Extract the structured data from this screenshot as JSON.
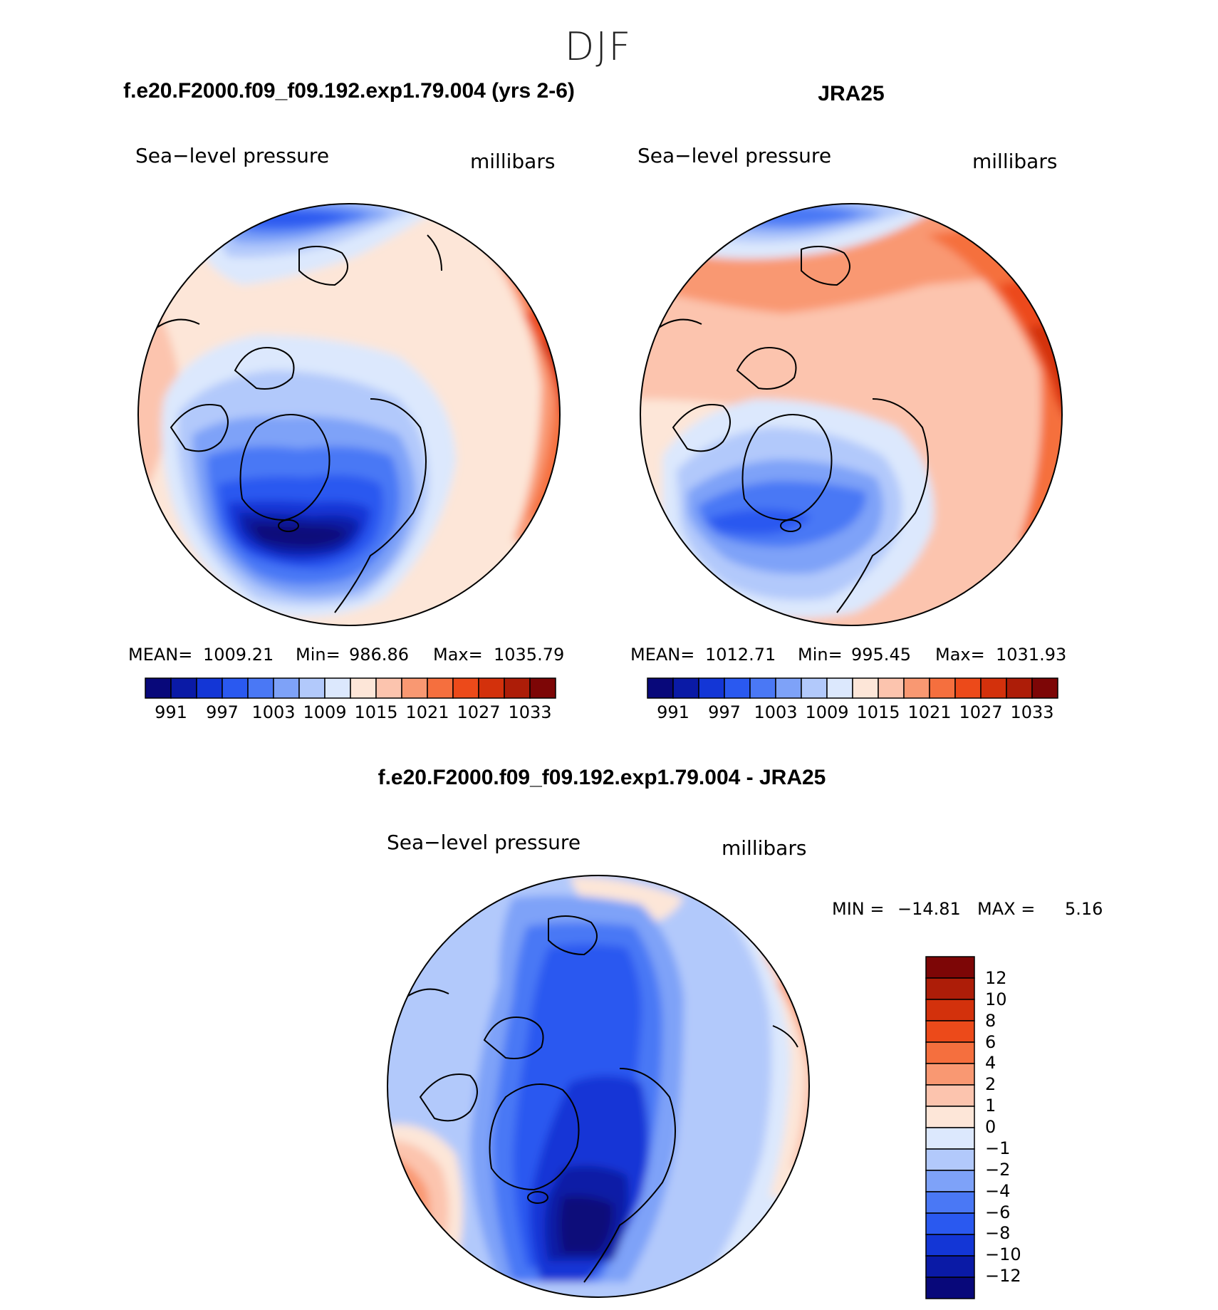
{
  "season_title": "DJF",
  "panels": [
    {
      "id": "model",
      "case_title": "f.e20.F2000.f09_f09.192.exp1.79.004 (yrs 2-6)",
      "variable": "Sea−level pressure",
      "units": "millibars",
      "stats": {
        "mean_label": "MEAN=",
        "mean": "1009.21",
        "min_label": "Min=",
        "min": "986.86",
        "max_label": "Max=",
        "max": "1035.79"
      },
      "colorbar_labels": [
        "991",
        "997",
        "1003",
        "1009",
        "1015",
        "1021",
        "1027",
        "1033"
      ]
    },
    {
      "id": "obs",
      "case_title": "JRA25",
      "variable": "Sea−level pressure",
      "units": "millibars",
      "stats": {
        "mean_label": "MEAN=",
        "mean": "1012.71",
        "min_label": "Min=",
        "min": "995.45",
        "max_label": "Max=",
        "max": "1031.93"
      },
      "colorbar_labels": [
        "991",
        "997",
        "1003",
        "1009",
        "1015",
        "1021",
        "1027",
        "1033"
      ]
    }
  ],
  "diff_panel": {
    "case_title": "f.e20.F2000.f09_f09.192.exp1.79.004 - JRA25",
    "variable": "Sea−level pressure",
    "units": "millibars",
    "min_label": "MIN =",
    "min": "−14.81",
    "max_label": "MAX =",
    "max": "5.16",
    "colorbar_labels": [
      "12",
      "10",
      "8",
      "6",
      "4",
      "2",
      "1",
      "0",
      "−1",
      "−2",
      "−4",
      "−6",
      "−8",
      "−10",
      "−12"
    ]
  },
  "palette_abs": [
    "#08087a",
    "#0a1aa6",
    "#1336d6",
    "#2a59f0",
    "#4a78f5",
    "#7ea2f8",
    "#b2c9fb",
    "#dce8fd",
    "#fde6d8",
    "#fcc4ae",
    "#f99872",
    "#f56f3e",
    "#ec4a1a",
    "#d3310c",
    "#ad1d08",
    "#7d0606"
  ],
  "palette_diff": [
    "#7d0606",
    "#ad1d08",
    "#d3310c",
    "#ec4a1a",
    "#f56f3e",
    "#f99872",
    "#fcc4ae",
    "#fde6d8",
    "#dce8fd",
    "#b2c9fb",
    "#7ea2f8",
    "#4a78f5",
    "#2a59f0",
    "#1336d6",
    "#0a1aa6",
    "#08087a"
  ]
}
